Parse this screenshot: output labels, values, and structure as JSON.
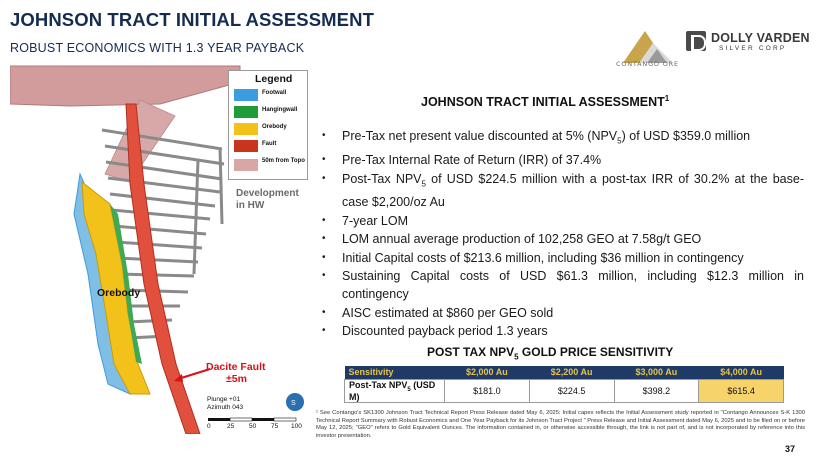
{
  "header": {
    "title": "JOHNSON TRACT INITIAL ASSESSMENT",
    "subtitle": "ROBUST ECONOMICS WITH 1.3 YEAR PAYBACK"
  },
  "logos": {
    "contango": "CONTANGO ORE",
    "dolly_name": "DOLLY VARDEN",
    "dolly_sub": "SILVER CORP"
  },
  "map": {
    "legend_title": "Legend",
    "legend": [
      {
        "label": "Footwall",
        "color": "#3d9be0"
      },
      {
        "label": "Hangingwall",
        "color": "#1f9b3a"
      },
      {
        "label": "Orebody",
        "color": "#f2c21a"
      },
      {
        "label": "Fault",
        "color": "#c8341c"
      },
      {
        "label": "50m from Topo",
        "color": "#d9a6a6"
      }
    ],
    "development_label": "Development in HW",
    "orebody_label": "Orebody",
    "fault_label_1": "Dacite Fault",
    "fault_label_2": "±5m",
    "plunge_label": "Plunge +01",
    "azimuth_label": "Azimuth 043",
    "scale": [
      "0",
      "25",
      "50",
      "75",
      "100"
    ]
  },
  "content": {
    "heading": "JOHNSON TRACT INITIAL ASSESSMENT",
    "heading_sup": "1",
    "bullets": [
      {
        "pre": "Pre-Tax net present value discounted at 5% (NPV",
        "sub": "5",
        "post": ") of USD $359.0 million"
      },
      {
        "pre": "Pre-Tax Internal Rate of Return (IRR) of 37.4%",
        "sub": "",
        "post": ""
      },
      {
        "pre": "Post-Tax NPV",
        "sub": "5",
        "post": " of USD $224.5 million with a post-tax IRR of 30.2% at the base-case $2,200/oz Au"
      },
      {
        "pre": "7-year LOM",
        "sub": "",
        "post": ""
      },
      {
        "pre": "LOM annual average production of 102,258 GEO at 7.58g/t GEO",
        "sub": "",
        "post": ""
      },
      {
        "pre": "Initial Capital costs of $213.6 million, including $36 million in contingency",
        "sub": "",
        "post": ""
      },
      {
        "pre": "Sustaining Capital costs of USD $61.3 million, including $12.3 million in contingency",
        "sub": "",
        "post": ""
      },
      {
        "pre": "AISC estimated at $860 per GEO sold",
        "sub": "",
        "post": ""
      },
      {
        "pre": "Discounted payback period 1.3 years",
        "sub": "",
        "post": ""
      }
    ],
    "table_heading_pre": "POST TAX NPV",
    "table_heading_sub": "5",
    "table_heading_post": " GOLD PRICE SENSITIVITY",
    "table": {
      "headers": [
        "Sensitivity",
        "$2,000 Au",
        "$2,200 Au",
        "$3,000 Au",
        "$4,000 Au"
      ],
      "row_label_pre": "Post-Tax NPV",
      "row_label_sub": "5",
      "row_label_post": " (USD M)",
      "values": [
        "$181.0",
        "$224.5",
        "$398.2",
        "$615.4"
      ]
    }
  },
  "footnote": "¹ See Contango's SK1300 Johnson Tract Technical Report Press Release dated May 6, 2025; Initial capex reflects the Initial Assessment study reported in \"Contango Announces S-K 1300 Technical Report Summary with Robust Economics and One Year Payback for its Johnson Tract Project \" Press Release and Initial Assessment dated May 6, 2025 and to be filed on or before May 12, 2025; \"GEO\" refers to Gold Equivalent Ounces. The information contained in, or otherwise accessible through, the link is not part of, and is not incorporated by reference into this investor presentation.",
  "page_number": "37"
}
